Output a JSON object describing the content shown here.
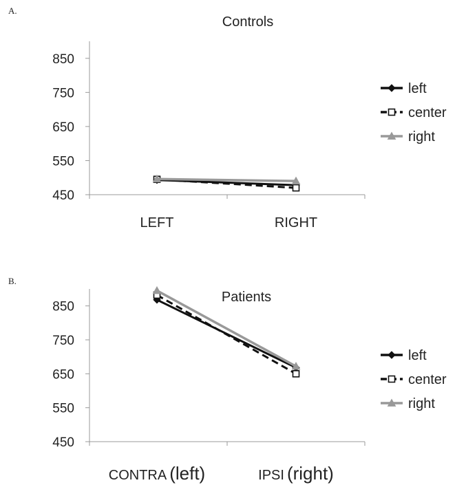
{
  "chart_data": [
    {
      "type": "line",
      "panel_label": "A.",
      "title": "Controls",
      "categories": [
        "LEFT",
        "RIGHT"
      ],
      "category_labels": [
        {
          "main": "LEFT",
          "paren": ""
        },
        {
          "main": "RIGHT",
          "paren": ""
        }
      ],
      "ylim": [
        450,
        900
      ],
      "yticks": [
        450,
        550,
        650,
        750,
        850
      ],
      "series": [
        {
          "name": "left",
          "values": [
            493,
            478
          ],
          "color": "#111111",
          "dash": "",
          "marker": "diamond"
        },
        {
          "name": "center",
          "values": [
            495,
            470
          ],
          "color": "#111111",
          "dash": "10,6",
          "marker": "square-open"
        },
        {
          "name": "right",
          "values": [
            496,
            490
          ],
          "color": "#999999",
          "dash": "",
          "marker": "triangle"
        }
      ],
      "legend_position": "right"
    },
    {
      "type": "line",
      "panel_label": "B.",
      "title": "Patients",
      "categories": [
        "CONTRA (left)",
        "IPSI (right)"
      ],
      "category_labels": [
        {
          "main": "CONTRA",
          "paren": "(left)"
        },
        {
          "main": "IPSI",
          "paren": "(right)"
        }
      ],
      "ylim": [
        450,
        900
      ],
      "yticks": [
        450,
        550,
        650,
        750,
        850
      ],
      "series": [
        {
          "name": "left",
          "values": [
            868,
            668
          ],
          "color": "#111111",
          "dash": "",
          "marker": "diamond"
        },
        {
          "name": "center",
          "values": [
            882,
            650
          ],
          "color": "#111111",
          "dash": "10,6",
          "marker": "square-open"
        },
        {
          "name": "right",
          "values": [
            895,
            672
          ],
          "color": "#999999",
          "dash": "",
          "marker": "triangle"
        }
      ],
      "legend_position": "right"
    }
  ]
}
